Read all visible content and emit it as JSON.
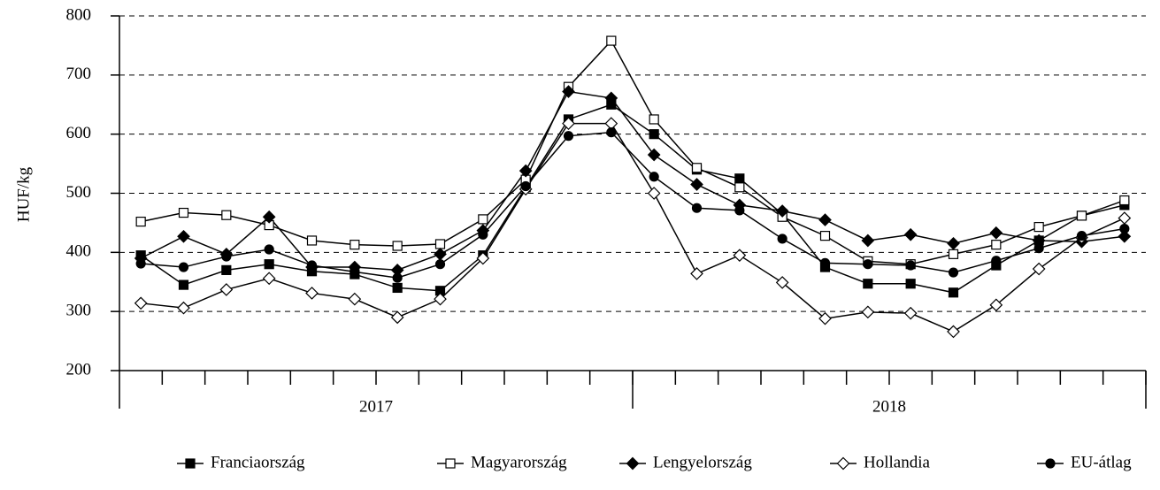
{
  "chart_data": {
    "type": "line",
    "y_label": "HUF/kg",
    "categories": [
      null,
      null,
      null,
      null,
      null,
      null,
      null,
      null,
      null,
      null,
      null,
      null,
      null,
      null,
      null,
      null,
      null,
      null,
      null,
      null,
      null,
      null,
      null,
      null
    ],
    "x_groups": [
      "2017",
      "2018"
    ],
    "ylim": [
      200,
      800
    ],
    "yticks": [
      200,
      300,
      400,
      500,
      600,
      700,
      800
    ],
    "grid": true,
    "legend": "bottom",
    "series": [
      {
        "name": "Franciaország",
        "color": "#000000",
        "marker": "square",
        "filled": true,
        "values": [
          395,
          345,
          370,
          380,
          368,
          363,
          340,
          335,
          395,
          510,
          625,
          650,
          600,
          540,
          525,
          465,
          375,
          347,
          347,
          332,
          378,
          420,
          462,
          480
        ]
      },
      {
        "name": "Magyarország",
        "color": "#000000",
        "marker": "square",
        "filled": false,
        "values": [
          452,
          467,
          463,
          446,
          420,
          413,
          411,
          414,
          456,
          523,
          680,
          758,
          625,
          543,
          510,
          460,
          428,
          385,
          380,
          397,
          413,
          443,
          462,
          488
        ]
      },
      {
        "name": "Lengyelország",
        "color": "#000000",
        "marker": "diamond",
        "filled": true,
        "values": [
          390,
          427,
          397,
          460,
          375,
          375,
          370,
          397,
          437,
          538,
          672,
          661,
          565,
          515,
          480,
          470,
          455,
          420,
          430,
          415,
          433,
          420,
          418,
          427
        ]
      },
      {
        "name": "Hollandia",
        "color": "#000000",
        "marker": "diamond",
        "filled": false,
        "values": [
          314,
          306,
          337,
          356,
          331,
          321,
          290,
          321,
          390,
          507,
          618,
          618,
          500,
          364,
          395,
          349,
          288,
          299,
          297,
          266,
          311,
          372,
          425,
          458
        ]
      },
      {
        "name": "EU-átlag",
        "color": "#000000",
        "marker": "circle",
        "filled": true,
        "values": [
          381,
          375,
          393,
          405,
          378,
          367,
          357,
          380,
          430,
          512,
          597,
          603,
          528,
          475,
          471,
          423,
          382,
          380,
          378,
          366,
          386,
          407,
          428,
          440
        ]
      }
    ]
  }
}
